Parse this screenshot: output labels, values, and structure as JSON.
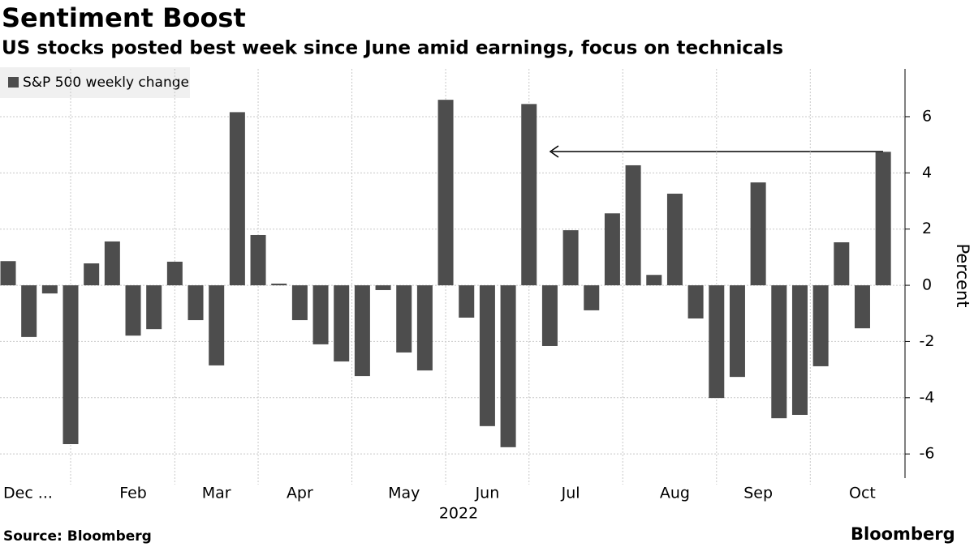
{
  "chart_data": {
    "type": "bar",
    "title": "Sentiment Boost",
    "subtitle": "US stocks posted best week since June amid earnings, focus on technicals",
    "legend": "S&P 500 weekly change",
    "y_label": "Percent",
    "x_label": "2022",
    "source": "Source: Bloomberg",
    "brand": "Bloomberg",
    "color": "#4d4d4d",
    "categories": [
      "Dec ...",
      null,
      null,
      null,
      null,
      null,
      "Feb",
      null,
      null,
      null,
      "Mar",
      null,
      null,
      null,
      "Apr",
      null,
      null,
      null,
      null,
      "May",
      null,
      null,
      null,
      "Jun",
      null,
      null,
      null,
      "Jul",
      null,
      null,
      null,
      null,
      "Aug",
      null,
      null,
      null,
      "Sep",
      null,
      null,
      null,
      null,
      "Oct",
      null
    ],
    "values": [
      0.86,
      -1.84,
      -0.29,
      -5.65,
      0.78,
      1.56,
      -1.79,
      -1.56,
      0.84,
      -1.24,
      -2.85,
      6.16,
      1.79,
      0.06,
      -1.24,
      -2.1,
      -2.71,
      -3.23,
      -0.17,
      -2.39,
      -3.03,
      6.6,
      -1.15,
      -5.01,
      -5.76,
      6.45,
      -2.16,
      1.96,
      -0.89,
      2.56,
      4.27,
      0.37,
      3.26,
      -1.18,
      -4.01,
      -3.26,
      3.66,
      -4.73,
      -4.61,
      -2.88,
      1.53,
      -1.53,
      4.75
    ],
    "ylim": [
      -6.86,
      7.7
    ],
    "yticks": [
      -6,
      -4,
      -2,
      0,
      2,
      4,
      6
    ],
    "grid": true
  }
}
